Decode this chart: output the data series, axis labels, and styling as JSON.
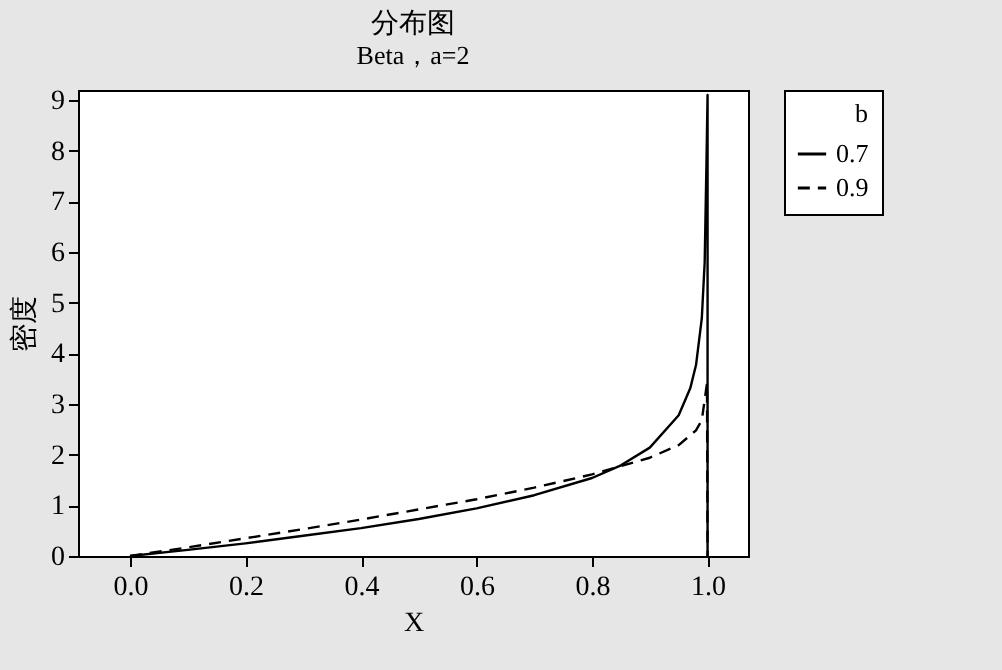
{
  "chart_data": {
    "type": "line",
    "title": "分布图",
    "subtitle": "Beta，a=2",
    "xlabel": "X",
    "ylabel": "密度",
    "legend_title": "b",
    "legend": "right",
    "grid": false,
    "xlim": [
      -0.09,
      1.07
    ],
    "ylim": [
      0,
      9.2
    ],
    "xticks": [
      {
        "value": 0,
        "label": "0.0"
      },
      {
        "value": 0.2,
        "label": "0.2"
      },
      {
        "value": 0.4,
        "label": "0.4"
      },
      {
        "value": 0.6,
        "label": "0.6"
      },
      {
        "value": 0.8,
        "label": "0.8"
      },
      {
        "value": 1,
        "label": "1.0"
      }
    ],
    "yticks": [
      0,
      1,
      2,
      3,
      4,
      5,
      6,
      7,
      8,
      9
    ],
    "series": [
      {
        "name": "0.7",
        "color": "#000000",
        "line_style": "solid",
        "x": [
          0,
          0.1,
          0.2,
          0.3,
          0.4,
          0.5,
          0.6,
          0.7,
          0.8,
          0.85,
          0.9,
          0.95,
          0.97,
          0.98,
          0.99,
          0.995,
          0.998,
          1.0,
          1.0
        ],
        "values": [
          0,
          0.12,
          0.25,
          0.4,
          0.55,
          0.73,
          0.94,
          1.2,
          1.54,
          1.79,
          2.14,
          2.78,
          3.31,
          3.77,
          4.69,
          5.8,
          7.7,
          9.1,
          0
        ]
      },
      {
        "name": "0.9",
        "color": "#000000",
        "line_style": "dashed",
        "x": [
          0,
          0.1,
          0.2,
          0.3,
          0.4,
          0.5,
          0.6,
          0.7,
          0.8,
          0.9,
          0.95,
          0.98,
          0.99,
          0.999,
          1.0
        ],
        "values": [
          0,
          0.17,
          0.35,
          0.53,
          0.72,
          0.92,
          1.12,
          1.35,
          1.61,
          1.94,
          2.19,
          2.48,
          2.68,
          3.41,
          0
        ]
      }
    ]
  }
}
